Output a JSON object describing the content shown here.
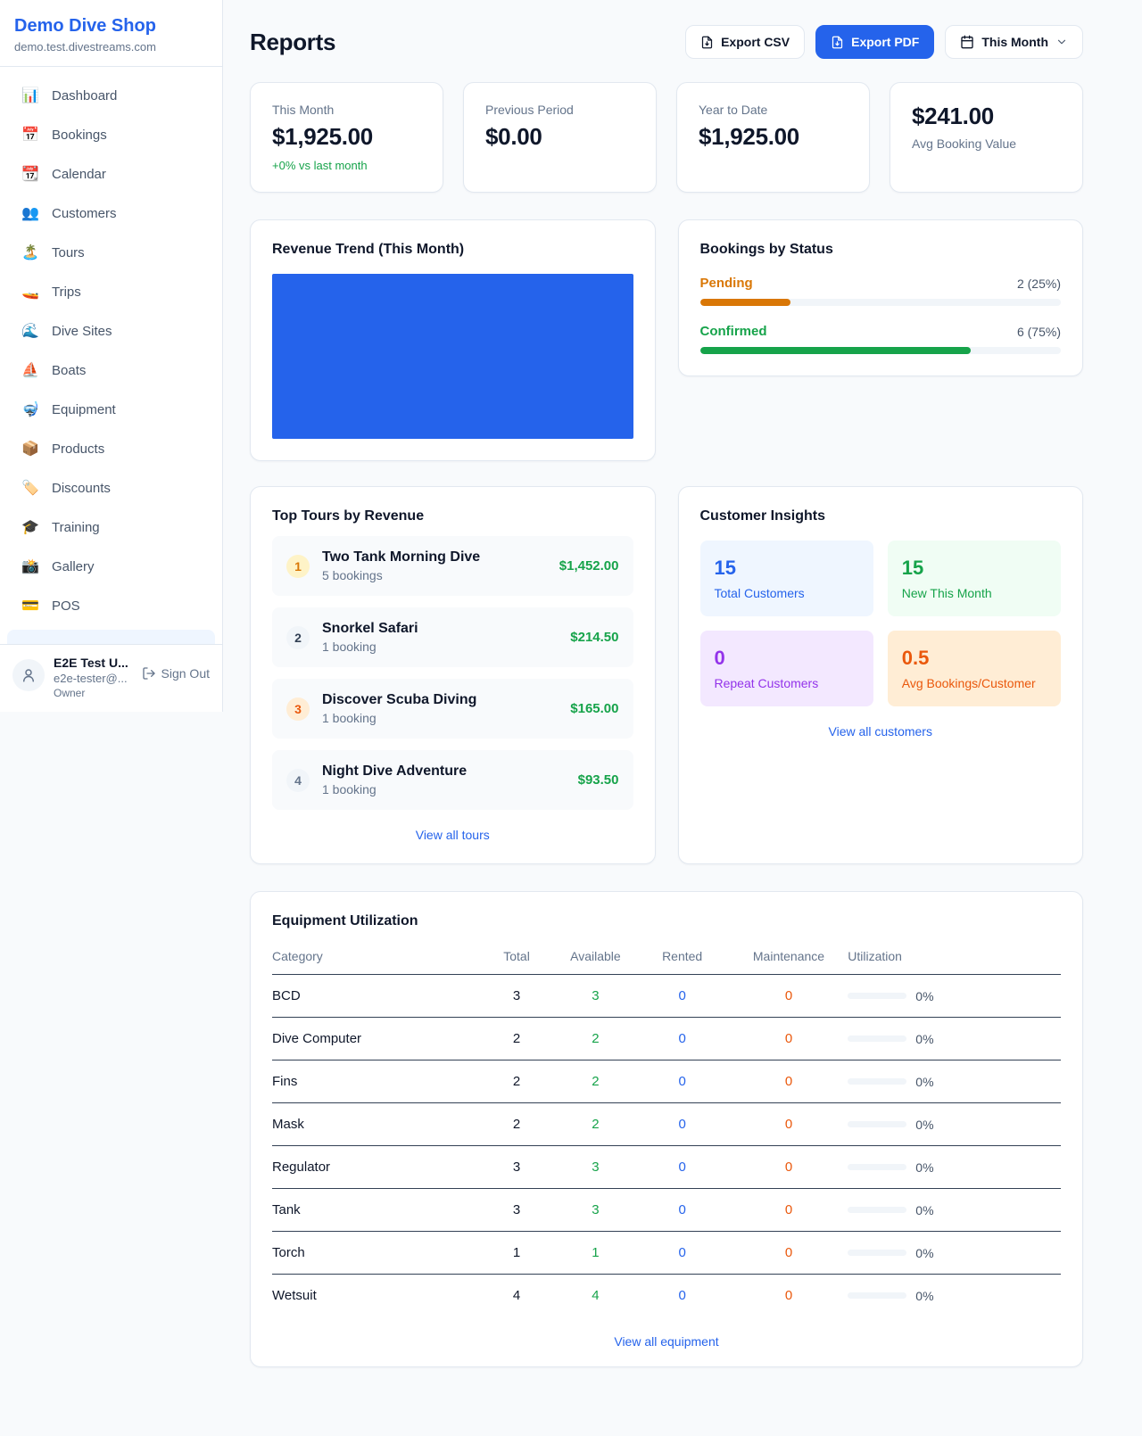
{
  "colors": {
    "accent": "#2563eb",
    "green": "#16a34a",
    "orange": "#d97706",
    "deep_orange": "#ea580c",
    "purple": "#9333ea",
    "bar_blue": "#2563eb"
  },
  "sidebar": {
    "brand": "Demo Dive Shop",
    "domain": "demo.test.divestreams.com",
    "items": [
      {
        "icon": "📊",
        "label": "Dashboard"
      },
      {
        "icon": "📅",
        "label": "Bookings"
      },
      {
        "icon": "📆",
        "label": "Calendar"
      },
      {
        "icon": "👥",
        "label": "Customers"
      },
      {
        "icon": "🏝️",
        "label": "Tours"
      },
      {
        "icon": "🚤",
        "label": "Trips"
      },
      {
        "icon": "🌊",
        "label": "Dive Sites"
      },
      {
        "icon": "⛵",
        "label": "Boats"
      },
      {
        "icon": "🤿",
        "label": "Equipment"
      },
      {
        "icon": "📦",
        "label": "Products"
      },
      {
        "icon": "🏷️",
        "label": "Discounts"
      },
      {
        "icon": "🎓",
        "label": "Training"
      },
      {
        "icon": "📸",
        "label": "Gallery"
      },
      {
        "icon": "💳",
        "label": "POS"
      }
    ],
    "user": {
      "name": "E2E Test U...",
      "email": "e2e-tester@...",
      "role": "Owner",
      "sign_out": "Sign Out"
    }
  },
  "header": {
    "title": "Reports",
    "export_csv": "Export CSV",
    "export_pdf": "Export PDF",
    "period": "This Month"
  },
  "stats": [
    {
      "label": "This Month",
      "value": "$1,925.00",
      "sub": "+0% vs last month"
    },
    {
      "label": "Previous Period",
      "value": "$0.00"
    },
    {
      "label": "Year to Date",
      "value": "$1,925.00"
    },
    {
      "label": "Avg Booking Value",
      "value": "$241.00"
    }
  ],
  "revenue_trend": {
    "title": "Revenue Trend (This Month)",
    "bar_color": "#2563eb"
  },
  "bookings_by_status": {
    "title": "Bookings by Status",
    "rows": [
      {
        "label": "Pending",
        "value": "2 (25%)",
        "percent": "25%",
        "color": "#d97706"
      },
      {
        "label": "Confirmed",
        "value": "6 (75%)",
        "percent": "75%",
        "color": "#16a34a"
      }
    ]
  },
  "top_tours": {
    "title": "Top Tours by Revenue",
    "items": [
      {
        "rank": "1",
        "name": "Two Tank Morning Dive",
        "bookings": "5 bookings",
        "amount": "$1,452.00"
      },
      {
        "rank": "2",
        "name": "Snorkel Safari",
        "bookings": "1 booking",
        "amount": "$214.50"
      },
      {
        "rank": "3",
        "name": "Discover Scuba Diving",
        "bookings": "1 booking",
        "amount": "$165.00"
      },
      {
        "rank": "4",
        "name": "Night Dive Adventure",
        "bookings": "1 booking",
        "amount": "$93.50"
      }
    ],
    "view_all": "View all tours"
  },
  "customer_insights": {
    "title": "Customer Insights",
    "tiles": [
      {
        "value": "15",
        "label": "Total Customers",
        "color": "#2563eb",
        "bg": "#eff6ff"
      },
      {
        "value": "15",
        "label": "New This Month",
        "color": "#16a34a",
        "bg": "#f0fdf4"
      },
      {
        "value": "0",
        "label": "Repeat Customers",
        "color": "#9333ea",
        "bg": "#f3e8ff"
      },
      {
        "value": "0.5",
        "label": "Avg Bookings/Customer",
        "color": "#ea580c",
        "bg": "#ffedd5"
      }
    ],
    "view_all": "View all customers"
  },
  "equipment": {
    "title": "Equipment Utilization",
    "columns": [
      "Category",
      "Total",
      "Available",
      "Rented",
      "Maintenance",
      "Utilization"
    ],
    "rows": [
      {
        "category": "BCD",
        "total": "3",
        "available": "3",
        "rented": "0",
        "maintenance": "0",
        "utilization": "0%"
      },
      {
        "category": "Dive Computer",
        "total": "2",
        "available": "2",
        "rented": "0",
        "maintenance": "0",
        "utilization": "0%"
      },
      {
        "category": "Fins",
        "total": "2",
        "available": "2",
        "rented": "0",
        "maintenance": "0",
        "utilization": "0%"
      },
      {
        "category": "Mask",
        "total": "2",
        "available": "2",
        "rented": "0",
        "maintenance": "0",
        "utilization": "0%"
      },
      {
        "category": "Regulator",
        "total": "3",
        "available": "3",
        "rented": "0",
        "maintenance": "0",
        "utilization": "0%"
      },
      {
        "category": "Tank",
        "total": "3",
        "available": "3",
        "rented": "0",
        "maintenance": "0",
        "utilization": "0%"
      },
      {
        "category": "Torch",
        "total": "1",
        "available": "1",
        "rented": "0",
        "maintenance": "0",
        "utilization": "0%"
      },
      {
        "category": "Wetsuit",
        "total": "4",
        "available": "4",
        "rented": "0",
        "maintenance": "0",
        "utilization": "0%"
      }
    ],
    "view_all": "View all equipment"
  }
}
